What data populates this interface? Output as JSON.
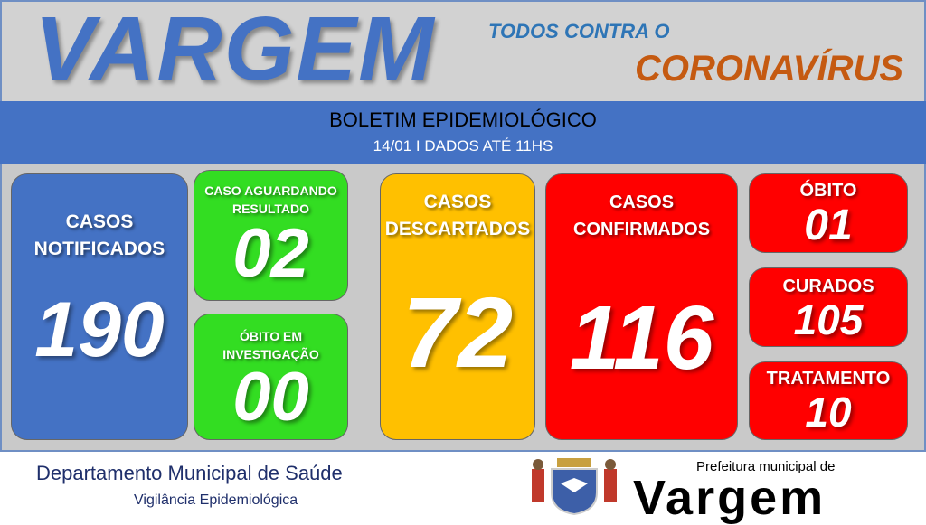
{
  "header": {
    "city": "VARGEM",
    "tagline_top": "TODOS CONTRA O",
    "tagline_bottom": "CORONAVÍRUS"
  },
  "band": {
    "title": "BOLETIM EPIDEMIOLÓGICO",
    "subtitle": "14/01 I DADOS ATÉ 11HS"
  },
  "cards": {
    "notificados": {
      "label": "CASOS NOTIFICADOS",
      "value": "190",
      "color": "#4472c4"
    },
    "aguardando": {
      "label": "CASO AGUARDANDO RESULTADO",
      "value": "02",
      "color": "#33dd22"
    },
    "obito_investigacao": {
      "label": "ÓBITO EM INVESTIGAÇÃO",
      "value": "00",
      "color": "#33dd22"
    },
    "descartados": {
      "label": "CASOS DESCARTADOS",
      "value": "72",
      "color": "#ffc000"
    },
    "confirmados": {
      "label": "CASOS CONFIRMADOS",
      "value": "116",
      "color": "#ff0000"
    },
    "obito": {
      "label": "ÓBITO",
      "value": "01",
      "color": "#ff0000"
    },
    "curados": {
      "label": "CURADOS",
      "value": "105",
      "color": "#ff0000"
    },
    "tratamento": {
      "label": "TRATAMENTO",
      "value": "10",
      "color": "#ff0000"
    }
  },
  "footer": {
    "department": "Departamento Municipal de Saúde",
    "division": "Vigilância Epidemiológica",
    "logo_small": "Prefeitura municipal de",
    "logo_big": "Vargem",
    "emblem": "coat-of-arms"
  }
}
